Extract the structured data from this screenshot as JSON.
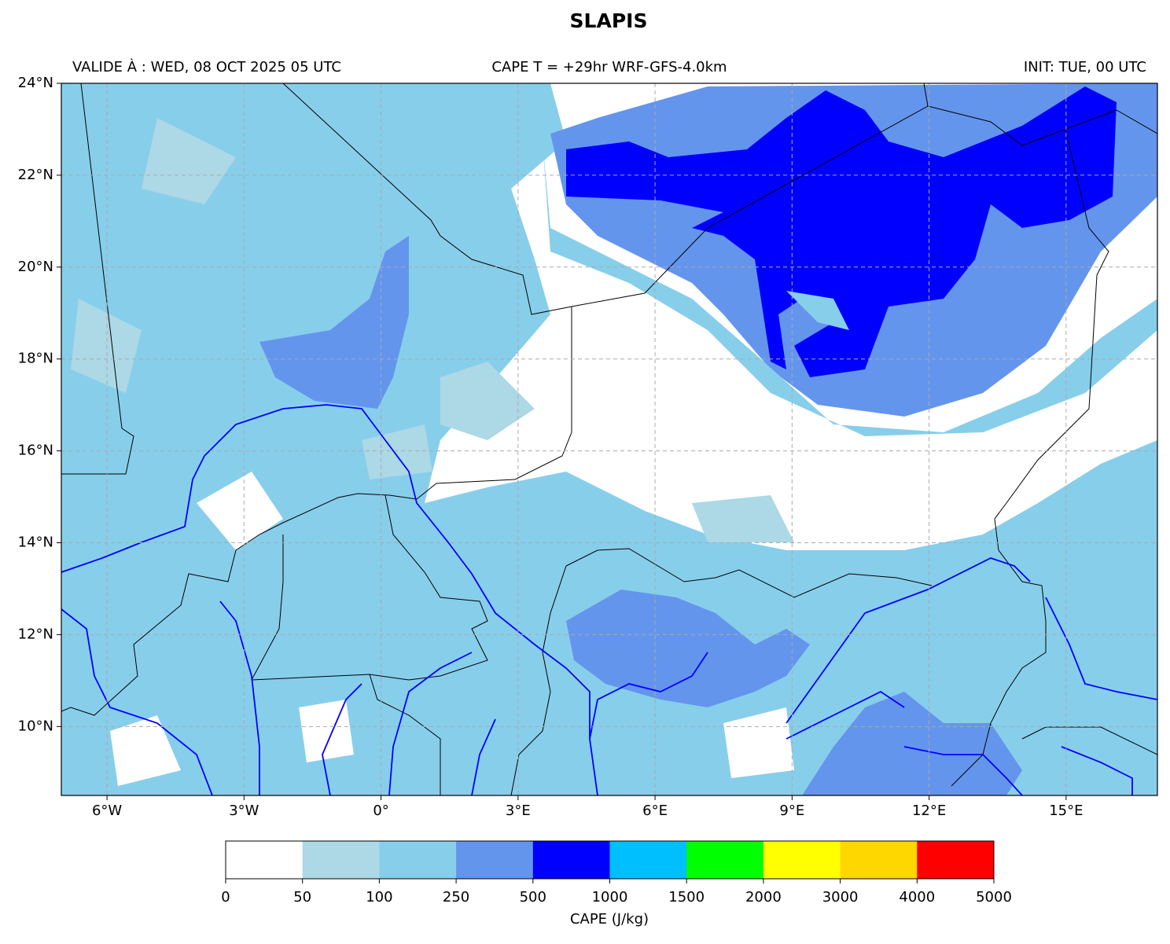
{
  "chart_data": {
    "type": "map",
    "title": "SLAPIS",
    "subtitle_left": "VALIDE À : WED, 08 OCT 2025 05 UTC",
    "subtitle_center": "CAPE T = +29hr WRF-GFS-4.0km",
    "subtitle_right": "INIT: TUE, 00 UTC",
    "xlim": [
      -7,
      17
    ],
    "ylim": [
      8.5,
      24
    ],
    "xticks": [
      {
        "value": -6,
        "label": "6°W"
      },
      {
        "value": -3,
        "label": "3°W"
      },
      {
        "value": 0,
        "label": "0°"
      },
      {
        "value": 3,
        "label": "3°E"
      },
      {
        "value": 6,
        "label": "6°E"
      },
      {
        "value": 9,
        "label": "9°E"
      },
      {
        "value": 12,
        "label": "12°E"
      },
      {
        "value": 15,
        "label": "15°E"
      }
    ],
    "yticks": [
      {
        "value": 10,
        "label": "10°N"
      },
      {
        "value": 12,
        "label": "12°N"
      },
      {
        "value": 14,
        "label": "14°N"
      },
      {
        "value": 16,
        "label": "16°N"
      },
      {
        "value": 18,
        "label": "18°N"
      },
      {
        "value": 20,
        "label": "20°N"
      },
      {
        "value": 22,
        "label": "22°N"
      },
      {
        "value": 24,
        "label": "24°N"
      }
    ],
    "grid": true,
    "colorbar": {
      "label": "CAPE (J/kg)",
      "boundaries": [
        0,
        50,
        100,
        250,
        500,
        1000,
        1500,
        2000,
        3000,
        4000,
        5000
      ],
      "colors": [
        "#ffffff",
        "#add8e6",
        "#87ceeb",
        "#6495ed",
        "#0000ff",
        "#00bfff",
        "#00ff00",
        "#ffff00",
        "#ffd700",
        "#ff0000"
      ]
    }
  }
}
